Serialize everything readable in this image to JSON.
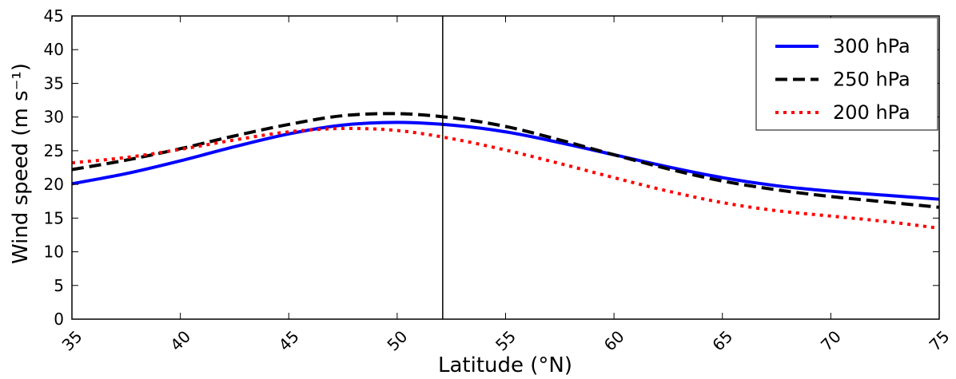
{
  "chart_data": {
    "type": "line",
    "xlabel": "Latitude (°N)",
    "ylabel": "Wind speed (m s⁻¹)",
    "xlim": [
      35,
      75
    ],
    "ylim": [
      0,
      45
    ],
    "xticks": [
      35,
      40,
      45,
      50,
      55,
      60,
      65,
      70,
      75
    ],
    "yticks": [
      0,
      5,
      10,
      15,
      20,
      25,
      30,
      35,
      40,
      45
    ],
    "grid": false,
    "legend_position": "top-right",
    "vertical_line_x": 52.1,
    "x": [
      35,
      37.5,
      40,
      42.5,
      45,
      47.5,
      50,
      52.5,
      55,
      57.5,
      60,
      62.5,
      65,
      67.5,
      70,
      72.5,
      75
    ],
    "series": [
      {
        "name": "300 hPa",
        "color": "#0000ff",
        "line_style": "solid",
        "values": [
          20.1,
          21.6,
          23.5,
          25.6,
          27.5,
          28.8,
          29.2,
          28.8,
          27.8,
          26.2,
          24.4,
          22.6,
          21.0,
          19.8,
          19.0,
          18.4,
          17.8
        ]
      },
      {
        "name": "250 hPa",
        "color": "#000000",
        "line_style": "dashed",
        "values": [
          22.2,
          23.6,
          25.3,
          27.2,
          28.9,
          30.2,
          30.5,
          29.9,
          28.6,
          26.6,
          24.4,
          22.3,
          20.5,
          19.2,
          18.2,
          17.4,
          16.6
        ]
      },
      {
        "name": "200 hPa",
        "color": "#ff0000",
        "line_style": "dotted",
        "values": [
          23.2,
          24.0,
          25.2,
          26.6,
          27.8,
          28.3,
          28.0,
          26.8,
          25.1,
          23.1,
          21.0,
          19.0,
          17.3,
          16.1,
          15.3,
          14.5,
          13.5
        ]
      }
    ]
  }
}
